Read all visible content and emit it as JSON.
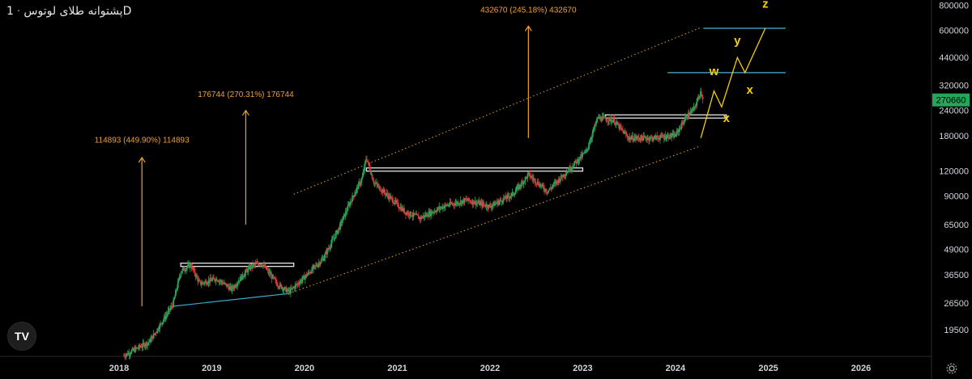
{
  "header": {
    "symbol": "پشتوانه طلای لوتوس",
    "separator": "·",
    "interval": "1D"
  },
  "logo": {
    "label": "TV"
  },
  "price_label": "270660",
  "chart_data": {
    "type": "candlestick",
    "yscale": "log",
    "y_ticks": [
      800000,
      600000,
      440000,
      320000,
      240000,
      180000,
      120000,
      90000,
      65000,
      49000,
      36500,
      26500,
      19500
    ],
    "x_ticks": [
      "2018",
      "2019",
      "2020",
      "2021",
      "2022",
      "2023",
      "2024",
      "2025",
      "2026"
    ],
    "ylim": [
      14500,
      850000
    ],
    "last_price": 270660,
    "price_path": [
      [
        "2018-01-20",
        14500
      ],
      [
        "2018-05-01",
        17000
      ],
      [
        "2018-08-01",
        26000
      ],
      [
        "2018-09-01",
        38000
      ],
      [
        "2018-10-10",
        41000
      ],
      [
        "2018-11-15",
        33000
      ],
      [
        "2019-01-20",
        35000
      ],
      [
        "2019-03-20",
        31000
      ],
      [
        "2019-06-01",
        40000
      ],
      [
        "2019-07-15",
        42000
      ],
      [
        "2019-09-15",
        33000
      ],
      [
        "2019-11-01",
        30000
      ],
      [
        "2020-01-15",
        37000
      ],
      [
        "2020-03-15",
        44000
      ],
      [
        "2020-05-15",
        62000
      ],
      [
        "2020-07-01",
        85000
      ],
      [
        "2020-08-15",
        110000
      ],
      [
        "2020-09-01",
        140000
      ],
      [
        "2020-10-01",
        105000
      ],
      [
        "2021-02-01",
        75000
      ],
      [
        "2021-04-01",
        70000
      ],
      [
        "2021-07-01",
        80000
      ],
      [
        "2021-10-01",
        86000
      ],
      [
        "2022-01-01",
        80000
      ],
      [
        "2022-04-01",
        92000
      ],
      [
        "2022-06-01",
        115000
      ],
      [
        "2022-08-15",
        95000
      ],
      [
        "2022-11-01",
        120000
      ],
      [
        "2023-01-15",
        150000
      ],
      [
        "2023-03-01",
        220000
      ],
      [
        "2023-05-01",
        215000
      ],
      [
        "2023-07-01",
        175000
      ],
      [
        "2023-10-01",
        175000
      ],
      [
        "2024-01-01",
        180000
      ],
      [
        "2024-02-10",
        220000
      ],
      [
        "2024-03-15",
        245000
      ],
      [
        "2024-04-10",
        300000
      ],
      [
        "2024-04-20",
        270660
      ]
    ],
    "support_levels": [
      {
        "price": 41000,
        "from": "2018-09-01",
        "to": "2019-11-20"
      },
      {
        "price": 122000,
        "from": "2020-09-01",
        "to": "2023-01-01"
      },
      {
        "price": 224000,
        "from": "2023-04-01",
        "to": "2024-07-20"
      }
    ],
    "target_levels": [
      {
        "price": 615000,
        "from": "2024-04-20",
        "to": "2025-03-10"
      },
      {
        "price": 370000,
        "from": "2023-12-01",
        "to": "2025-03-10"
      }
    ],
    "trend_line": {
      "from": [
        "2018-08-01",
        25500
      ],
      "to": [
        "2019-11-01",
        29500
      ]
    },
    "channel": {
      "upper": {
        "from": [
          "2019-11-20",
          92000
        ],
        "to": [
          "2024-04-10",
          620000
        ]
      },
      "lower": {
        "from": [
          "2019-11-01",
          29500
        ],
        "to": [
          "2024-04-10",
          160000
        ]
      }
    },
    "measurements": [
      {
        "label": "114893 (449.90%) 114893",
        "date": "2018-04-01",
        "from_price": 25500,
        "to_price": 140000,
        "label_price": 172000
      },
      {
        "label": "176744 (270.31%) 176744",
        "date": "2019-05-15",
        "from_price": 65000,
        "to_price": 240000,
        "label_price": 290000
      },
      {
        "label": "432670 (245.18%) 432670",
        "date": "2022-06-01",
        "from_price": 175000,
        "to_price": 630000,
        "label_price": 765000
      }
    ],
    "wave_path": [
      [
        "2024-04-10",
        175000
      ],
      [
        "2024-06-01",
        300000
      ],
      [
        "2024-07-01",
        250000
      ],
      [
        "2024-09-01",
        440000
      ],
      [
        "2024-10-01",
        370000
      ],
      [
        "2024-12-20",
        615000
      ]
    ],
    "wave_labels": [
      {
        "text": "w",
        "date": "2024-06-01",
        "price": 360000
      },
      {
        "text": "x",
        "date": "2024-07-20",
        "price": 210000
      },
      {
        "text": "y",
        "date": "2024-09-01",
        "price": 510000
      },
      {
        "text": "x",
        "date": "2024-10-20",
        "price": 290000
      },
      {
        "text": "z",
        "date": "2024-12-20",
        "price": 780000
      }
    ]
  }
}
